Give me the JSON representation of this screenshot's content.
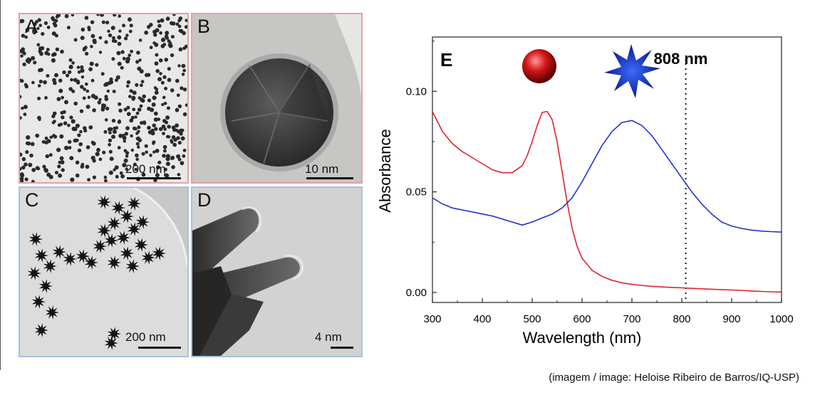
{
  "panels": [
    {
      "letter": "A",
      "scale": "200 nm"
    },
    {
      "letter": "B",
      "scale": "10 nm"
    },
    {
      "letter": "C",
      "scale": "200 nm"
    },
    {
      "letter": "D",
      "scale": "4 nm"
    }
  ],
  "chart_data": {
    "type": "line",
    "panel_letter": "E",
    "xlabel": "Wavelength (nm)",
    "ylabel": "Absorbance",
    "xlim": [
      300,
      1000
    ],
    "ylim": [
      -0.005,
      0.127
    ],
    "xticks": [
      "300",
      "400",
      "500",
      "600",
      "700",
      "800",
      "900",
      "1000"
    ],
    "yticks": [
      "0.00",
      "0.05",
      "0.10"
    ],
    "marker_line": {
      "x": 808,
      "label": "808 nm"
    },
    "grid": false,
    "series": [
      {
        "color": "#e0242b",
        "x": [
          300,
          320,
          340,
          360,
          380,
          400,
          420,
          440,
          460,
          480,
          490,
          500,
          510,
          520,
          530,
          540,
          550,
          560,
          570,
          580,
          590,
          600,
          620,
          640,
          660,
          680,
          700,
          720,
          740,
          760,
          780,
          800,
          820,
          840,
          860,
          880,
          900,
          920,
          940,
          960,
          980,
          1000
        ],
        "values": [
          0.09,
          0.08,
          0.074,
          0.07,
          0.067,
          0.064,
          0.061,
          0.0595,
          0.0595,
          0.063,
          0.068,
          0.075,
          0.083,
          0.0895,
          0.09,
          0.086,
          0.075,
          0.06,
          0.045,
          0.032,
          0.023,
          0.017,
          0.011,
          0.008,
          0.006,
          0.0048,
          0.004,
          0.0035,
          0.003,
          0.0027,
          0.0025,
          0.0023,
          0.002,
          0.0018,
          0.0016,
          0.0014,
          0.0012,
          0.001,
          0.0007,
          0.0005,
          0.0003,
          0.0002
        ]
      },
      {
        "color": "#2233cc",
        "x": [
          300,
          320,
          340,
          360,
          380,
          400,
          420,
          440,
          460,
          480,
          500,
          520,
          540,
          560,
          580,
          600,
          620,
          640,
          660,
          680,
          700,
          720,
          740,
          760,
          780,
          800,
          820,
          840,
          860,
          880,
          900,
          920,
          940,
          960,
          980,
          1000
        ],
        "values": [
          0.047,
          0.044,
          0.042,
          0.041,
          0.04,
          0.039,
          0.038,
          0.0365,
          0.035,
          0.0335,
          0.035,
          0.037,
          0.039,
          0.042,
          0.047,
          0.055,
          0.064,
          0.073,
          0.08,
          0.0845,
          0.0855,
          0.083,
          0.078,
          0.071,
          0.064,
          0.057,
          0.05,
          0.044,
          0.039,
          0.035,
          0.033,
          0.0318,
          0.031,
          0.0305,
          0.0302,
          0.03
        ]
      }
    ]
  }
}
